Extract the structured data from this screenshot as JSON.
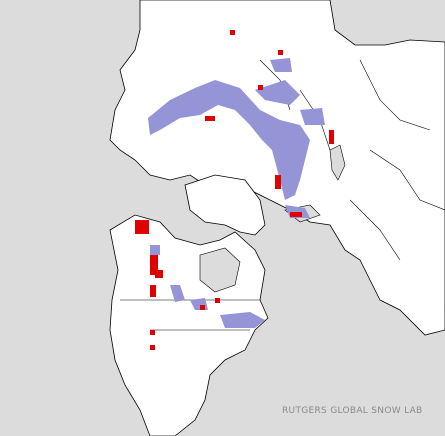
{
  "credit": "RUTGERS GLOBAL SNOW LAB"
}
